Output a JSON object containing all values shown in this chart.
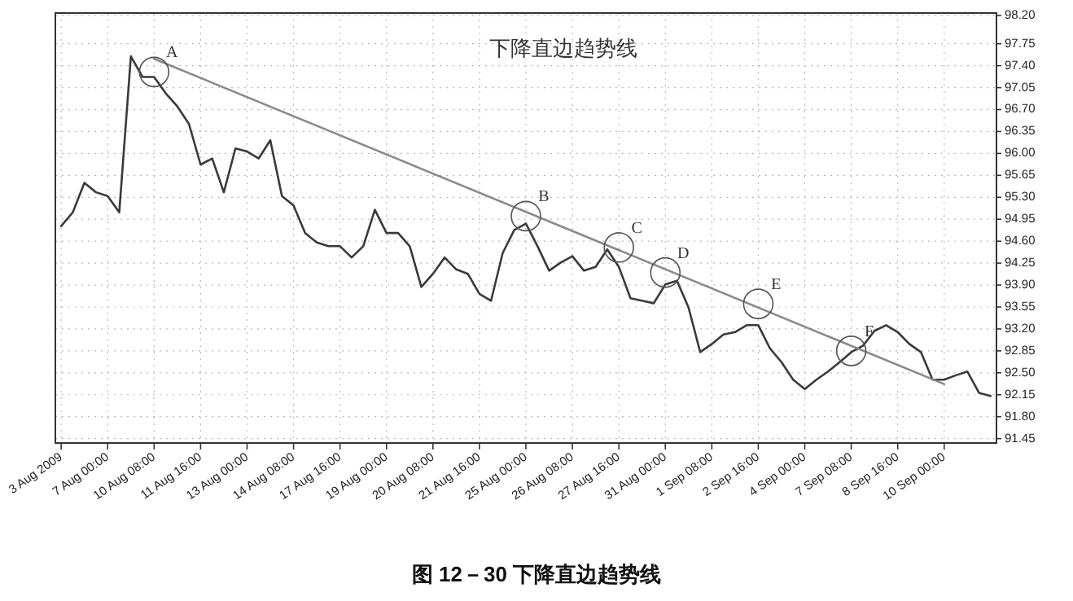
{
  "chart_data": {
    "type": "line",
    "title": "下降直边趋势线",
    "categories": [
      "3 Aug 2009",
      null,
      null,
      null,
      "7 Aug 00:00",
      null,
      null,
      null,
      "10 Aug 08:00",
      null,
      null,
      null,
      "11 Aug 16:00",
      null,
      null,
      null,
      "13 Aug 00:00",
      null,
      null,
      null,
      "14 Aug 08:00",
      null,
      null,
      null,
      "17 Aug 16:00",
      null,
      null,
      null,
      "19 Aug 00:00",
      null,
      null,
      null,
      "20 Aug 08:00",
      null,
      null,
      null,
      "21 Aug 16:00",
      null,
      null,
      null,
      "25 Aug 00:00",
      null,
      null,
      null,
      "26 Aug 08:00",
      null,
      null,
      null,
      "27 Aug 16:00",
      null,
      null,
      null,
      "31 Aug 00:00",
      null,
      null,
      null,
      "1 Sep 08:00",
      null,
      null,
      null,
      "2 Sep 16:00",
      null,
      null,
      null,
      "4 Sep 00:00",
      null,
      null,
      null,
      "7 Sep 08:00",
      null,
      null,
      null,
      "8 Sep 16:00",
      null,
      null,
      null,
      "10 Sep 00:00",
      null,
      null,
      null,
      null
    ],
    "series": [
      {
        "color": "#3a3a3a",
        "values": [
          94.84,
          95.06,
          95.53,
          95.38,
          95.32,
          95.06,
          97.55,
          97.22,
          97.22,
          96.96,
          96.75,
          96.47,
          95.82,
          95.92,
          95.38,
          96.08,
          96.03,
          95.92,
          96.21,
          95.32,
          95.17,
          94.73,
          94.58,
          94.52,
          94.52,
          94.34,
          94.52,
          95.1,
          94.73,
          94.73,
          94.52,
          93.87,
          94.08,
          94.34,
          94.15,
          94.08,
          93.76,
          93.65,
          94.41,
          94.78,
          94.88,
          94.52,
          94.13,
          94.26,
          94.36,
          94.13,
          94.19,
          94.47,
          94.19,
          93.69,
          93.65,
          93.61,
          93.91,
          93.97,
          93.54,
          92.83,
          92.96,
          93.11,
          93.15,
          93.26,
          93.26,
          92.89,
          92.67,
          92.39,
          92.24,
          92.39,
          92.52,
          92.67,
          92.83,
          92.93,
          93.17,
          93.26,
          93.15,
          92.96,
          92.83,
          92.39,
          92.39,
          92.46,
          92.52,
          92.18,
          92.13
        ]
      },
      {
        "type": "line",
        "color": "#8a8a8a",
        "x": [
          "10 Aug 08:00",
          "10 Sep 00:00"
        ],
        "values": [
          97.51,
          92.32
        ]
      }
    ],
    "ylim": [
      91.38,
      98.24
    ],
    "yticks": [
      {
        "value": 98.2,
        "label": "98.20"
      },
      97.75,
      {
        "value": 97.4,
        "label": "97.40"
      },
      97.05,
      {
        "value": 96.7,
        "label": "96.70"
      },
      96.35,
      {
        "value": 96,
        "label": "96.00"
      },
      95.65,
      {
        "value": 95.3,
        "label": "95.30"
      },
      94.95,
      {
        "value": 94.6,
        "label": "94.60"
      },
      94.25,
      {
        "value": 93.9,
        "label": "93.90"
      },
      93.55,
      {
        "value": 93.2,
        "label": "93.20"
      },
      92.85,
      {
        "value": 92.5,
        "label": "92.50"
      },
      92.15,
      {
        "value": 91.8,
        "label": "91.80"
      },
      91.45
    ],
    "grid": true,
    "annotations": [
      {
        "text": "A",
        "x": "10 Aug 08:00",
        "y": 97.3
      },
      {
        "text": "B",
        "x": "25 Aug 00:00",
        "y": 95.0
      },
      {
        "text": "C",
        "x": "27 Aug 16:00",
        "y": 94.5
      },
      {
        "text": "D",
        "x": "31 Aug 00:00",
        "y": 94.1
      },
      {
        "text": "E",
        "x": "2 Sep 16:00",
        "y": 93.6
      },
      {
        "text": "F",
        "x": "7 Sep 08:00",
        "y": 92.85
      },
      "图 12－30   下降直边趋势线"
    ]
  }
}
